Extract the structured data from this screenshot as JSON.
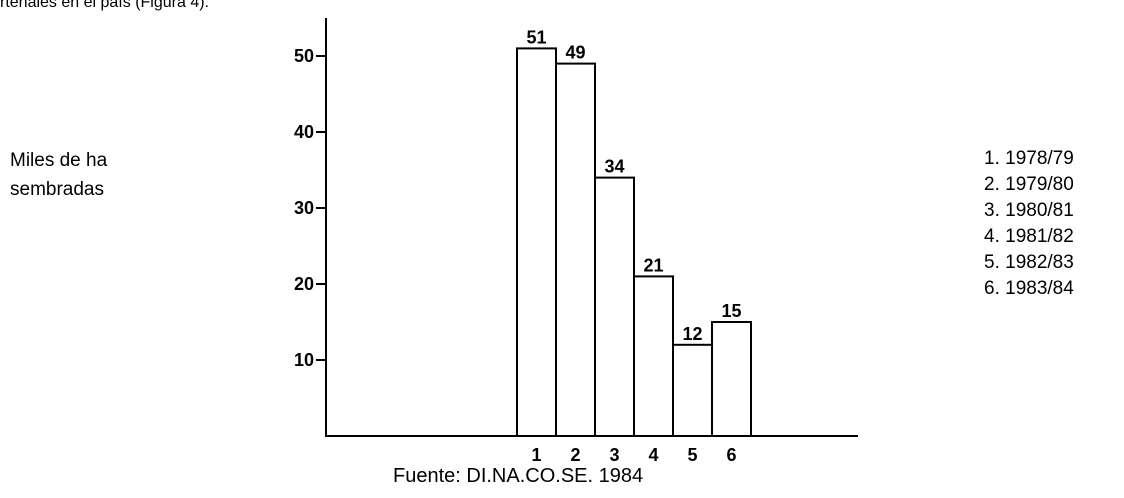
{
  "page": {
    "top_fragment": "rtenales en el país (Figura 4)."
  },
  "chart_data": {
    "type": "bar",
    "categories": [
      "1",
      "2",
      "3",
      "4",
      "5",
      "6"
    ],
    "values": [
      51,
      49,
      34,
      21,
      12,
      15
    ],
    "data_labels": [
      "51",
      "49",
      "34",
      "21",
      "12",
      "15"
    ],
    "ylabel_lines": [
      "Miles de ha",
      "sembradas"
    ],
    "yticks": [
      10,
      20,
      30,
      40,
      50
    ],
    "ytick_labels": [
      "10",
      "20",
      "30",
      "40",
      "50"
    ],
    "ylim": [
      0,
      55
    ],
    "legend": [
      "1. 1978/79",
      "2. 1979/80",
      "3. 1980/81",
      "4. 1981/82",
      "5. 1982/83",
      "6. 1983/84"
    ],
    "legend_position": "right",
    "source": "Fuente: DI.NA.CO.SE. 1984",
    "grid": false,
    "colors": {
      "bar_fill": "#ffffff",
      "bar_stroke": "#000000"
    }
  }
}
